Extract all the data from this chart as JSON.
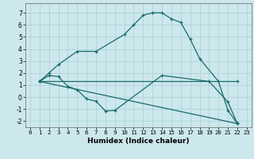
{
  "xlabel": "Humidex (Indice chaleur)",
  "bg_color": "#cce8ec",
  "grid_color": "#aacdd4",
  "line_color": "#1a6b6b",
  "xlim": [
    -0.5,
    23.5
  ],
  "ylim": [
    -2.5,
    7.8
  ],
  "yticks": [
    -2,
    -1,
    0,
    1,
    2,
    3,
    4,
    5,
    6,
    7
  ],
  "xticks": [
    0,
    1,
    2,
    3,
    4,
    5,
    6,
    7,
    8,
    9,
    10,
    11,
    12,
    13,
    14,
    15,
    16,
    17,
    18,
    19,
    20,
    21,
    22,
    23
  ],
  "lines": [
    {
      "x": [
        1,
        2,
        3,
        5,
        7,
        10,
        11,
        12,
        13,
        14,
        15,
        16,
        17,
        18,
        20,
        21,
        22
      ],
      "y": [
        1.3,
        2.0,
        2.7,
        3.8,
        3.8,
        5.2,
        6.0,
        6.8,
        7.0,
        7.0,
        6.5,
        6.2,
        4.8,
        3.2,
        1.3,
        -1.1,
        -2.2
      ]
    },
    {
      "x": [
        1,
        2,
        3,
        4,
        5,
        6,
        7,
        8,
        9,
        14,
        19,
        21,
        22
      ],
      "y": [
        1.3,
        1.8,
        1.7,
        0.9,
        0.6,
        -0.15,
        -0.35,
        -1.15,
        -1.1,
        1.8,
        1.3,
        -0.4,
        -2.2
      ]
    },
    {
      "x": [
        1,
        22
      ],
      "y": [
        1.3,
        1.3
      ]
    },
    {
      "x": [
        1,
        22
      ],
      "y": [
        1.3,
        -2.2
      ]
    }
  ]
}
